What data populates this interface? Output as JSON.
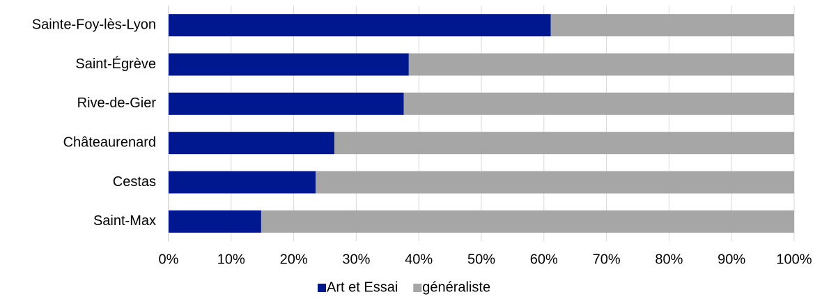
{
  "chart_data": {
    "type": "stacked-barh",
    "categories": [
      "Sainte-Foy-lès-Lyon",
      "Saint-Égrève",
      "Rive-de-Gier",
      "Châteaurenard",
      "Cestas",
      "Saint-Max"
    ],
    "series": [
      {
        "name": "Art et Essai",
        "color": "#00188f",
        "values": [
          61.1,
          38.4,
          37.6,
          26.5,
          23.5,
          14.8
        ]
      },
      {
        "name": "généraliste",
        "color": "#a6a6a6",
        "values": [
          38.9,
          61.6,
          62.4,
          73.5,
          76.5,
          85.2
        ]
      }
    ],
    "xlim": [
      0,
      100
    ],
    "xticks": [
      {
        "value": 0,
        "label": "0%"
      },
      {
        "value": 10,
        "label": "10%"
      },
      {
        "value": 20,
        "label": "20%"
      },
      {
        "value": 30,
        "label": "30%"
      },
      {
        "value": 40,
        "label": "40%"
      },
      {
        "value": 50,
        "label": "50%"
      },
      {
        "value": 60,
        "label": "60%"
      },
      {
        "value": 70,
        "label": "70%"
      },
      {
        "value": 80,
        "label": "80%"
      },
      {
        "value": 90,
        "label": "90%"
      },
      {
        "value": 100,
        "label": "100%"
      }
    ],
    "grid": true,
    "legend": "bottom"
  }
}
